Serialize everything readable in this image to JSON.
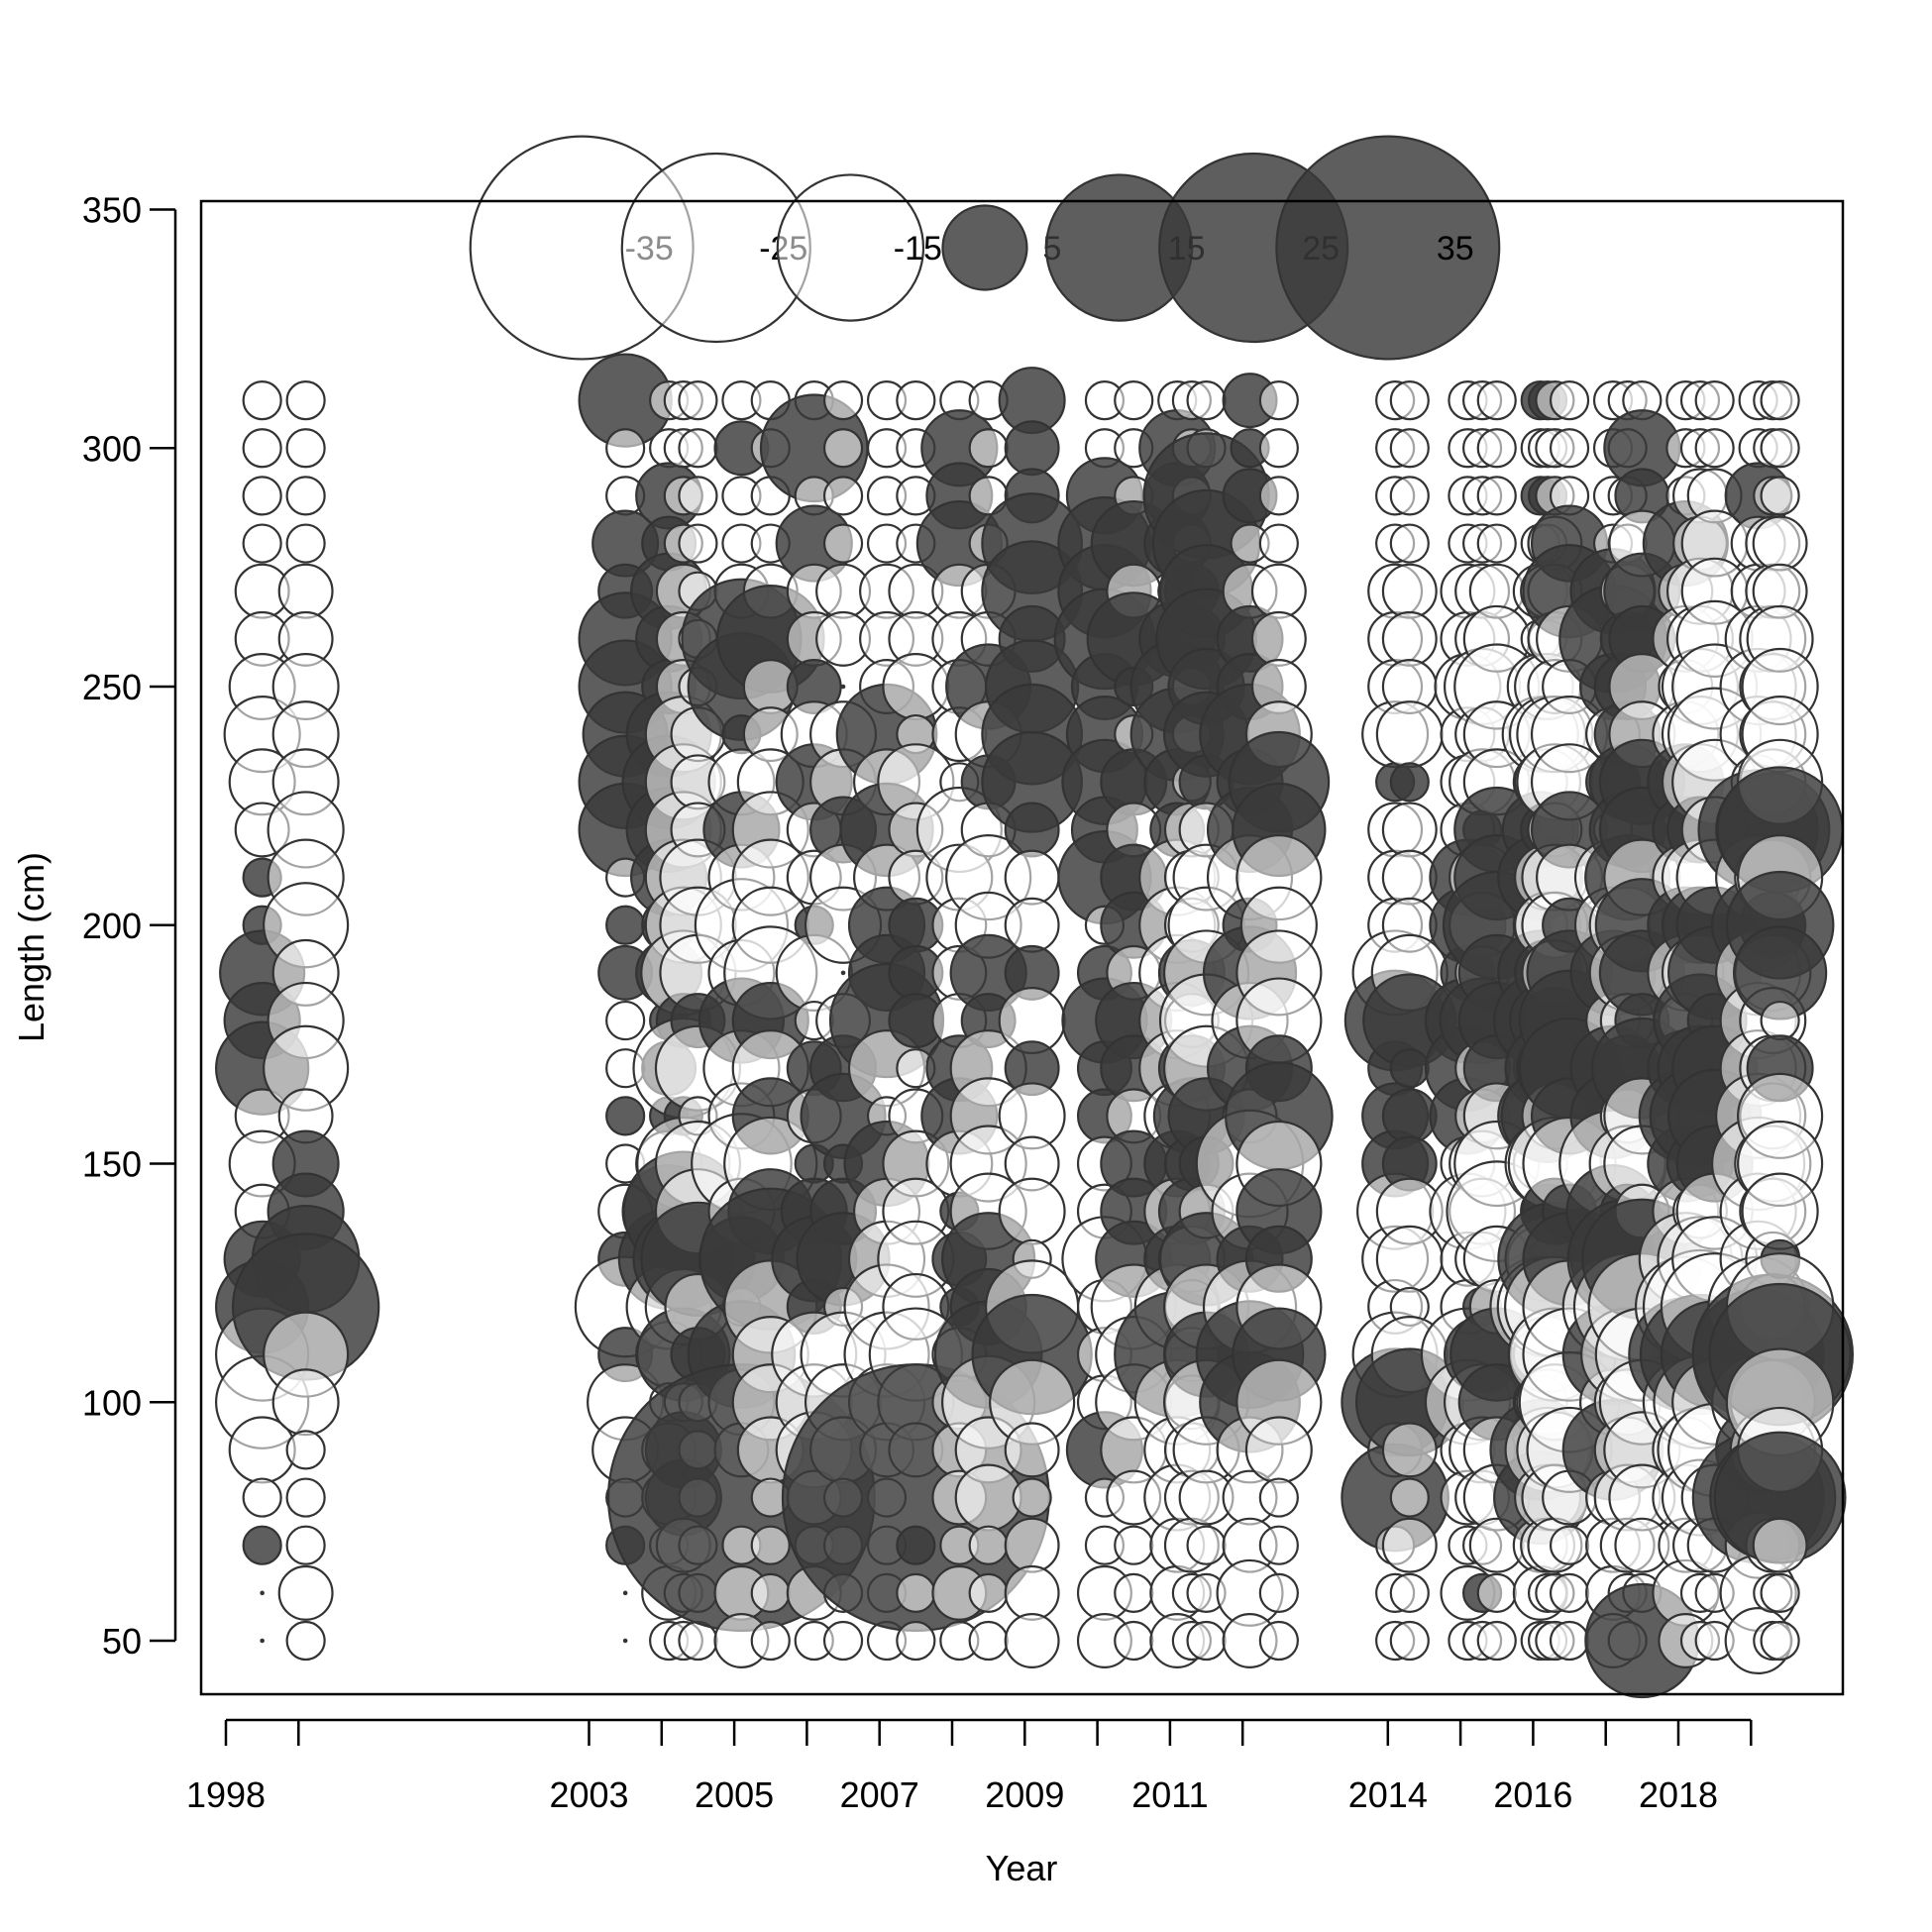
{
  "chart_data": {
    "type": "scatter",
    "subtype": "bubble residual plot",
    "xlabel": "Year",
    "ylabel": "Length (cm)",
    "xlim": [
      1997.5,
      2020.2
    ],
    "ylim": [
      38.5,
      353
    ],
    "x_ticks": [
      1998,
      1999,
      2003,
      2004,
      2005,
      2006,
      2007,
      2008,
      2009,
      2010,
      2011,
      2012,
      2014,
      2015,
      2016,
      2017,
      2018,
      2019
    ],
    "x_tick_labels": [
      "1998",
      "2003",
      "2005",
      "2007",
      "2009",
      "2011",
      "2014",
      "2016",
      "2018"
    ],
    "x_tick_label_positions": [
      1998,
      2003,
      2005,
      2007,
      2009,
      2011,
      2014,
      2016,
      2018
    ],
    "y_ticks": [
      50,
      100,
      150,
      200,
      250,
      300,
      350
    ],
    "y_tick_labels": [
      "50",
      "100",
      "150",
      "200",
      "250",
      "300",
      "350"
    ],
    "grid": false,
    "colors": {
      "positive_fill": "#3a3a3a",
      "negative_fill": "#ffffff",
      "stroke": "#333333"
    },
    "legend": {
      "placement": "top",
      "y": 342,
      "items": [
        {
          "label": "-35",
          "value": -35,
          "x": 2002.9
        },
        {
          "label": "-25",
          "value": -25,
          "x": 2004.75
        },
        {
          "label": "-15",
          "value": -15,
          "x": 2006.6
        },
        {
          "label": "5",
          "value": 5,
          "x": 2008.45
        },
        {
          "label": "15",
          "value": 15,
          "x": 2010.3
        },
        {
          "label": "25",
          "value": 25,
          "x": 2012.15
        },
        {
          "label": "35",
          "value": 35,
          "x": 2014.0
        }
      ]
    },
    "lengths": [
      310,
      300,
      290,
      280,
      270,
      260,
      250,
      240,
      230,
      220,
      210,
      200,
      190,
      180,
      170,
      160,
      150,
      140,
      130,
      120,
      110,
      100,
      90,
      80,
      70,
      60,
      50
    ],
    "columns": [
      {
        "x": 1998.5,
        "r": [
          -1,
          -1,
          -1,
          -1,
          -2,
          -2,
          -3,
          -4,
          -3,
          -2,
          1,
          1,
          5,
          4,
          6,
          -2,
          -3,
          -2,
          4,
          6,
          -6,
          -6,
          -3,
          -1,
          1,
          0,
          0
        ]
      },
      {
        "x": 1999.1,
        "r": [
          -1,
          -1,
          -1,
          -1,
          -2,
          -2,
          -3,
          -3,
          -3,
          -4,
          -4,
          -5,
          -3,
          -4,
          -5,
          -2,
          3,
          4,
          8,
          15,
          -5,
          -3,
          -1,
          -1,
          -1,
          -2,
          -1
        ]
      },
      {
        "x": 2003.5,
        "r": [
          6,
          -1,
          -1,
          3,
          2,
          6,
          6,
          5,
          6,
          6,
          -1,
          1,
          2,
          -1,
          -1,
          1,
          -1,
          -2,
          2,
          -7,
          2,
          -4,
          -3,
          -1,
          1,
          0,
          0
        ]
      },
      {
        "x": 2004.1,
        "r": [
          -1,
          -1,
          3,
          2,
          4,
          3,
          2,
          5,
          6,
          5,
          4,
          2,
          3,
          1,
          2,
          1,
          -3,
          6,
          7,
          -5,
          -3,
          -1,
          -2,
          -2,
          -1,
          -2,
          -1
        ]
      },
      {
        "x": 2004.3,
        "r": [
          -1,
          -1,
          -1,
          -1,
          -2,
          -2,
          -2,
          -4,
          -4,
          -4,
          -4,
          -4,
          -5,
          2,
          -7,
          1,
          -6,
          10,
          7,
          -4,
          6,
          -1,
          4,
          4,
          -2,
          -1,
          -1
        ]
      },
      {
        "x": 2004.5,
        "r": [
          -1,
          -1,
          -1,
          -1,
          -1,
          -1,
          -1,
          -2,
          -2,
          -2,
          -4,
          -4,
          -4,
          2,
          -5,
          -1,
          -5,
          -5,
          9,
          -3,
          2,
          -1,
          -1,
          -1,
          -1,
          -1,
          -1
        ]
      },
      {
        "x": 2005.1,
        "r": [
          -1,
          2,
          -1,
          -1,
          -2,
          10,
          8,
          1,
          -3,
          4,
          -3,
          -6,
          -3,
          5,
          -4,
          -3,
          -7,
          -3,
          5,
          -1,
          8,
          -3,
          -2,
          50,
          -1,
          -2,
          -2
        ]
      },
      {
        "x": 2005.5,
        "r": [
          -1,
          -1,
          -1,
          -1,
          -2,
          8,
          -2,
          -2,
          -3,
          -4,
          -4,
          -4,
          -6,
          4,
          -4,
          4,
          -6,
          5,
          14,
          -6,
          -4,
          -4,
          -3,
          -1,
          -1,
          -1,
          -1
        ]
      },
      {
        "x": 2006.1,
        "r": [
          -1,
          8,
          -1,
          4,
          -2,
          -2,
          2,
          -3,
          4,
          -2,
          -2,
          1,
          -4,
          -1,
          2,
          -2,
          1,
          3,
          5,
          2,
          -5,
          -4,
          -4,
          -2,
          -1,
          -2,
          -1
        ]
      },
      {
        "x": 2006.5,
        "r": [
          -1,
          -1,
          -1,
          -1,
          -2,
          -2,
          0,
          -3,
          -3,
          3,
          -3,
          -4,
          0,
          -2,
          3,
          5,
          1,
          3,
          6,
          -1,
          -5,
          -4,
          -3,
          -1,
          -1,
          -1,
          -1
        ]
      },
      {
        "x": 2007.1,
        "r": [
          -1,
          -1,
          -1,
          -1,
          -2,
          -2,
          -2,
          7,
          -3,
          6,
          -3,
          4,
          4,
          9,
          -4,
          -1,
          5,
          -3,
          -4,
          -5,
          -5,
          -4,
          -2,
          -1,
          -1,
          -1,
          -1
        ]
      },
      {
        "x": 2007.5,
        "r": [
          -1,
          -1,
          -1,
          -1,
          -2,
          -2,
          -3,
          -1,
          -4,
          -2,
          -2,
          2,
          2,
          2,
          -1,
          -2,
          -3,
          -3,
          -4,
          -3,
          -6,
          -4,
          -2,
          50,
          1,
          -1,
          -1
        ]
      },
      {
        "x": 2008.1,
        "r": [
          -1,
          4,
          3,
          5,
          -2,
          -2,
          -2,
          -2,
          -1,
          -5,
          -3,
          -2,
          -2,
          -2,
          3,
          4,
          -3,
          1,
          2,
          1,
          -2,
          -2,
          -2,
          -2,
          -1,
          -2,
          -1
        ]
      },
      {
        "x": 2008.5,
        "r": [
          -1,
          -1,
          -1,
          -1,
          -2,
          -2,
          5,
          -3,
          2,
          -2,
          -5,
          -3,
          4,
          2,
          -4,
          -4,
          -4,
          -4,
          6,
          4,
          8,
          -6,
          -3,
          -3,
          -1,
          -1,
          -1
        ]
      },
      {
        "x": 2009.1,
        "r": [
          3,
          2,
          2,
          7,
          7,
          3,
          6,
          7,
          7,
          2,
          -2,
          -2,
          2,
          -3,
          2,
          -3,
          -2,
          -3,
          -1,
          -6,
          10,
          -5,
          -2,
          -1,
          -2,
          -2,
          -2
        ]
      },
      {
        "x": 2010.1,
        "r": [
          -1,
          -1,
          4,
          6,
          6,
          7,
          3,
          4,
          5,
          3,
          6,
          -1,
          2,
          5,
          2,
          2,
          -2,
          -2,
          -5,
          -2,
          -2,
          -2,
          4,
          -1,
          -1,
          -2,
          -2
        ]
      },
      {
        "x": 2010.5,
        "r": [
          -1,
          -1,
          -1,
          5,
          -2,
          6,
          1,
          -1,
          3,
          -2,
          3,
          3,
          -2,
          4,
          3,
          -2,
          3,
          3,
          4,
          -5,
          -4,
          -4,
          -3,
          -2,
          -1,
          -1,
          -1
        ]
      },
      {
        "x": 2011.1,
        "r": [
          -1,
          4,
          3,
          3,
          1,
          4,
          6,
          6,
          3,
          2,
          -4,
          -4,
          -4,
          -4,
          -4,
          -3,
          3,
          -3,
          3,
          -5,
          11,
          -5,
          -3,
          -3,
          -2,
          -2,
          -2
        ]
      },
      {
        "x": 2011.3,
        "r": [
          -1,
          -1,
          -1,
          -1,
          2,
          3,
          -1,
          -1,
          -1,
          -2,
          -2,
          -2,
          3,
          -2,
          3,
          4,
          2,
          3,
          -3,
          -2,
          -2,
          -2,
          -2,
          -2,
          -2,
          -1,
          -1
        ]
      },
      {
        "x": 2011.5,
        "r": [
          -1,
          -1,
          11,
          8,
          6,
          7,
          4,
          5,
          2,
          -2,
          -3,
          -4,
          -5,
          -6,
          -5,
          4,
          2,
          -2,
          6,
          -5,
          5,
          -5,
          -3,
          -2,
          -1,
          -1,
          -1
        ]
      },
      {
        "x": 2012.1,
        "r": [
          2,
          1,
          2,
          -1,
          -2,
          3,
          3,
          7,
          3,
          5,
          -5,
          2,
          6,
          -4,
          5,
          -2,
          -8,
          -4,
          3,
          -6,
          8,
          7,
          -3,
          -2,
          -2,
          -3,
          -2
        ]
      },
      {
        "x": 2012.5,
        "r": [
          -1,
          -1,
          -1,
          -1,
          -2,
          -2,
          -2,
          -3,
          7,
          6,
          -5,
          -4,
          -5,
          -5,
          3,
          8,
          -5,
          5,
          3,
          -5,
          6,
          -5,
          -3,
          -1,
          -1,
          -1,
          -1
        ]
      },
      {
        "x": 2014.1,
        "r": [
          -1,
          -1,
          -1,
          -1,
          -2,
          -2,
          -2,
          -3,
          1,
          -2,
          -2,
          -2,
          -5,
          7,
          2,
          3,
          3,
          -4,
          -3,
          -2,
          -5,
          8,
          -2,
          8,
          -1,
          -1,
          -1
        ]
      },
      {
        "x": 2014.3,
        "r": [
          -1,
          -1,
          -1,
          -1,
          -2,
          -2,
          -2,
          -3,
          1,
          -2,
          -2,
          -2,
          -4,
          6,
          1,
          2,
          2,
          -3,
          -3,
          -1,
          -4,
          8,
          -2,
          -1,
          -2,
          -1,
          -1
        ]
      },
      {
        "x": 2015.1,
        "r": [
          -1,
          -1,
          -1,
          -1,
          -2,
          -2,
          -3,
          -2,
          -2,
          -2,
          4,
          4,
          2,
          5,
          5,
          4,
          -2,
          -4,
          -2,
          -2,
          -6,
          -5,
          -2,
          -2,
          -1,
          -2,
          -1
        ]
      },
      {
        "x": 2015.3,
        "r": [
          -1,
          -1,
          -1,
          -1,
          -2,
          -2,
          -4,
          -2,
          -3,
          1,
          -3,
          -3,
          -2,
          5,
          -2,
          -2,
          -3,
          -3,
          -2,
          1,
          4,
          -4,
          -3,
          -2,
          -1,
          1,
          -1
        ]
      },
      {
        "x": 2015.5,
        "r": [
          -1,
          -1,
          -1,
          -1,
          -2,
          -3,
          -5,
          -3,
          -3,
          5,
          5,
          8,
          4,
          4,
          3,
          -3,
          -5,
          -7,
          -3,
          -2,
          6,
          4,
          -3,
          -3,
          -2,
          -1,
          -1
        ]
      },
      {
        "x": 2016.1,
        "r": [
          1,
          -1,
          1,
          -1,
          -2,
          -1,
          -3,
          -4,
          -2,
          4,
          5,
          -2,
          5,
          6,
          2,
          5,
          -2,
          1,
          -3,
          -7,
          -2,
          -2,
          7,
          6,
          -2,
          -2,
          -1
        ]
      },
      {
        "x": 2016.2,
        "r": [
          1,
          -1,
          1,
          -1,
          -2,
          -1,
          -3,
          -4,
          -3,
          2,
          -3,
          -3,
          3,
          4,
          5,
          6,
          -5,
          2,
          -5,
          -7,
          -4,
          -3,
          -5,
          -3,
          -2,
          -1,
          -1
        ]
      },
      {
        "x": 2016.3,
        "r": [
          -1,
          -1,
          -1,
          -2,
          -2,
          -2,
          -2,
          -4,
          -4,
          -2,
          -3,
          -3,
          -3,
          3,
          4,
          -3,
          -6,
          3,
          9,
          -7,
          -6,
          -4,
          -4,
          -3,
          -2,
          -1,
          -1
        ]
      },
      {
        "x": 2016.5,
        "r": [
          -1,
          -1,
          -1,
          4,
          6,
          -3,
          -2,
          -4,
          -4,
          4,
          -3,
          2,
          5,
          7,
          7,
          4,
          -6,
          2,
          6,
          -6,
          -6,
          -7,
          -5,
          -2,
          -1,
          -1,
          -1
        ]
      },
      {
        "x": 2017.1,
        "r": [
          -1,
          -1,
          -1,
          -1,
          5,
          8,
          3,
          -2,
          2,
          -1,
          -4,
          -4,
          5,
          -2,
          5,
          5,
          -8,
          6,
          5,
          -7,
          7,
          -3,
          7,
          -2,
          -2,
          -2,
          -2
        ]
      },
      {
        "x": 2017.3,
        "r": [
          -1,
          -1,
          -1,
          -1,
          -2,
          2,
          3,
          3,
          4,
          4,
          5,
          -4,
          -4,
          -2,
          3,
          -2,
          -4,
          2,
          10,
          -8,
          -6,
          -3,
          -3,
          -3,
          -2,
          -1,
          -1
        ]
      },
      {
        "x": 2017.5,
        "r": [
          -1,
          4,
          2,
          -3,
          4,
          3,
          -3,
          -3,
          5,
          5,
          -4,
          6,
          5,
          2,
          7,
          -4,
          -4,
          -2,
          10,
          -8,
          -6,
          -5,
          -4,
          -3,
          -2,
          -1,
          9
        ]
      },
      {
        "x": 2018.1,
        "r": [
          -1,
          -1,
          -1,
          5,
          -2,
          -3,
          -2,
          -3,
          4,
          3,
          -3,
          4,
          -4,
          -2,
          4,
          6,
          4,
          -3,
          -6,
          -7,
          9,
          -5,
          -3,
          -3,
          -2,
          -3,
          -2
        ]
      },
      {
        "x": 2018.3,
        "r": [
          -1,
          -1,
          -2,
          -2,
          -3,
          -3,
          -4,
          -4,
          -4,
          3,
          -4,
          4,
          -4,
          6,
          5,
          7,
          3,
          -2,
          -5,
          -9,
          10,
          -6,
          -5,
          -4,
          -2,
          -1,
          -1
        ]
      },
      {
        "x": 2018.5,
        "r": [
          -1,
          -1,
          -2,
          -3,
          -3,
          -4,
          -5,
          -6,
          -5,
          -3,
          -4,
          4,
          6,
          2,
          5,
          6,
          4,
          -4,
          -5,
          -8,
          8,
          -5,
          -6,
          -3,
          -2,
          -1,
          -1
        ]
      },
      {
        "x": 2019.1,
        "r": [
          -1,
          -1,
          3,
          -2,
          -2,
          -3,
          -4,
          -4,
          -2,
          10,
          -5,
          6,
          -5,
          -4,
          -4,
          -5,
          -6,
          -4,
          -4,
          -7,
          12,
          -6,
          5,
          12,
          -3,
          -4,
          -3
        ]
      },
      {
        "x": 2019.3,
        "r": [
          -1,
          -1,
          -1,
          -2,
          -2,
          -3,
          -3,
          -3,
          -3,
          9,
          -4,
          3,
          -4,
          -3,
          -3,
          -3,
          -4,
          -3,
          -2,
          -3,
          18,
          -5,
          -5,
          11,
          -2,
          -1,
          -1
        ]
      },
      {
        "x": 2019.4,
        "r": [
          -1,
          -1,
          -1,
          -2,
          -2,
          -3,
          -4,
          -4,
          -5,
          11,
          -5,
          8,
          6,
          -1,
          3,
          -5,
          -5,
          -4,
          1,
          -8,
          14,
          -8,
          -5,
          12,
          -2,
          -1,
          -1
        ]
      }
    ]
  }
}
